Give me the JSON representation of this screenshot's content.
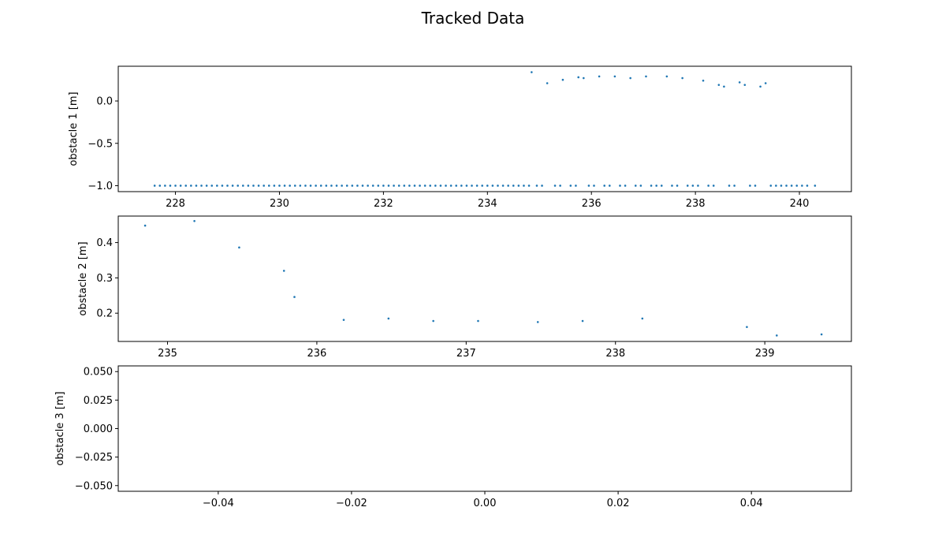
{
  "figure": {
    "title": "Tracked Data"
  },
  "colors": {
    "series": "#1f77b4",
    "axes": "#000000",
    "background": "#ffffff"
  },
  "chart_data": [
    {
      "type": "scatter",
      "ylabel": "obstacle 1 [m]",
      "xlabel": "",
      "xlim": [
        226.9,
        241.0
      ],
      "ylim": [
        -1.07,
        0.41
      ],
      "xticks": [
        228,
        230,
        232,
        234,
        236,
        238,
        240
      ],
      "xtick_labels": [
        "228",
        "230",
        "232",
        "234",
        "236",
        "238",
        "240"
      ],
      "yticks": [
        0.0,
        -0.5,
        -1.0
      ],
      "ytick_labels": [
        "0.0",
        "−0.5",
        "−1.0"
      ],
      "grid": false,
      "series": [
        {
          "points": [
            [
              227.6,
              -1.0
            ],
            [
              227.7,
              -1.0
            ],
            [
              227.8,
              -1.0
            ],
            [
              227.9,
              -1.0
            ],
            [
              228.0,
              -1.0
            ],
            [
              228.1,
              -1.0
            ],
            [
              228.2,
              -1.0
            ],
            [
              228.3,
              -1.0
            ],
            [
              228.4,
              -1.0
            ],
            [
              228.5,
              -1.0
            ],
            [
              228.6,
              -1.0
            ],
            [
              228.7,
              -1.0
            ],
            [
              228.8,
              -1.0
            ],
            [
              228.9,
              -1.0
            ],
            [
              229.0,
              -1.0
            ],
            [
              229.1,
              -1.0
            ],
            [
              229.2,
              -1.0
            ],
            [
              229.3,
              -1.0
            ],
            [
              229.4,
              -1.0
            ],
            [
              229.5,
              -1.0
            ],
            [
              229.6,
              -1.0
            ],
            [
              229.7,
              -1.0
            ],
            [
              229.8,
              -1.0
            ],
            [
              229.9,
              -1.0
            ],
            [
              230.0,
              -1.0
            ],
            [
              230.1,
              -1.0
            ],
            [
              230.2,
              -1.0
            ],
            [
              230.3,
              -1.0
            ],
            [
              230.4,
              -1.0
            ],
            [
              230.5,
              -1.0
            ],
            [
              230.6,
              -1.0
            ],
            [
              230.7,
              -1.0
            ],
            [
              230.8,
              -1.0
            ],
            [
              230.9,
              -1.0
            ],
            [
              231.0,
              -1.0
            ],
            [
              231.1,
              -1.0
            ],
            [
              231.2,
              -1.0
            ],
            [
              231.3,
              -1.0
            ],
            [
              231.4,
              -1.0
            ],
            [
              231.5,
              -1.0
            ],
            [
              231.6,
              -1.0
            ],
            [
              231.7,
              -1.0
            ],
            [
              231.8,
              -1.0
            ],
            [
              231.9,
              -1.0
            ],
            [
              232.0,
              -1.0
            ],
            [
              232.1,
              -1.0
            ],
            [
              232.2,
              -1.0
            ],
            [
              232.3,
              -1.0
            ],
            [
              232.4,
              -1.0
            ],
            [
              232.5,
              -1.0
            ],
            [
              232.6,
              -1.0
            ],
            [
              232.7,
              -1.0
            ],
            [
              232.8,
              -1.0
            ],
            [
              232.9,
              -1.0
            ],
            [
              233.0,
              -1.0
            ],
            [
              233.1,
              -1.0
            ],
            [
              233.2,
              -1.0
            ],
            [
              233.3,
              -1.0
            ],
            [
              233.4,
              -1.0
            ],
            [
              233.5,
              -1.0
            ],
            [
              233.6,
              -1.0
            ],
            [
              233.7,
              -1.0
            ],
            [
              233.8,
              -1.0
            ],
            [
              233.9,
              -1.0
            ],
            [
              234.0,
              -1.0
            ],
            [
              234.1,
              -1.0
            ],
            [
              234.2,
              -1.0
            ],
            [
              234.3,
              -1.0
            ],
            [
              234.4,
              -1.0
            ],
            [
              234.5,
              -1.0
            ],
            [
              234.6,
              -1.0
            ],
            [
              234.7,
              -1.0
            ],
            [
              234.8,
              -1.0
            ],
            [
              234.95,
              -1.0
            ],
            [
              235.05,
              -1.0
            ],
            [
              235.3,
              -1.0
            ],
            [
              235.4,
              -1.0
            ],
            [
              235.6,
              -1.0
            ],
            [
              235.7,
              -1.0
            ],
            [
              235.95,
              -1.0
            ],
            [
              236.05,
              -1.0
            ],
            [
              236.25,
              -1.0
            ],
            [
              236.35,
              -1.0
            ],
            [
              236.55,
              -1.0
            ],
            [
              236.65,
              -1.0
            ],
            [
              236.85,
              -1.0
            ],
            [
              236.95,
              -1.0
            ],
            [
              237.15,
              -1.0
            ],
            [
              237.25,
              -1.0
            ],
            [
              237.35,
              -1.0
            ],
            [
              237.55,
              -1.0
            ],
            [
              237.65,
              -1.0
            ],
            [
              237.85,
              -1.0
            ],
            [
              237.95,
              -1.0
            ],
            [
              238.05,
              -1.0
            ],
            [
              238.25,
              -1.0
            ],
            [
              238.35,
              -1.0
            ],
            [
              238.65,
              -1.0
            ],
            [
              238.75,
              -1.0
            ],
            [
              239.05,
              -1.0
            ],
            [
              239.15,
              -1.0
            ],
            [
              239.45,
              -1.0
            ],
            [
              239.55,
              -1.0
            ],
            [
              239.65,
              -1.0
            ],
            [
              239.75,
              -1.0
            ],
            [
              239.85,
              -1.0
            ],
            [
              239.95,
              -1.0
            ],
            [
              240.05,
              -1.0
            ],
            [
              240.15,
              -1.0
            ],
            [
              240.3,
              -1.0
            ],
            [
              234.85,
              0.34
            ],
            [
              235.15,
              0.21
            ],
            [
              235.45,
              0.25
            ],
            [
              235.75,
              0.28
            ],
            [
              235.85,
              0.27
            ],
            [
              236.15,
              0.29
            ],
            [
              236.45,
              0.29
            ],
            [
              236.75,
              0.27
            ],
            [
              237.05,
              0.29
            ],
            [
              237.45,
              0.29
            ],
            [
              237.75,
              0.27
            ],
            [
              238.15,
              0.24
            ],
            [
              238.45,
              0.19
            ],
            [
              238.55,
              0.17
            ],
            [
              238.85,
              0.22
            ],
            [
              238.95,
              0.19
            ],
            [
              239.25,
              0.17
            ],
            [
              239.35,
              0.21
            ]
          ]
        }
      ]
    },
    {
      "type": "scatter",
      "ylabel": "obstacle 2 [m]",
      "xlabel": "",
      "xlim": [
        234.67,
        239.58
      ],
      "ylim": [
        0.12,
        0.475
      ],
      "xticks": [
        235,
        236,
        237,
        238,
        239
      ],
      "xtick_labels": [
        "235",
        "236",
        "237",
        "238",
        "239"
      ],
      "yticks": [
        0.2,
        0.3,
        0.4
      ],
      "ytick_labels": [
        "0.2",
        "0.3",
        "0.4"
      ],
      "grid": false,
      "series": [
        {
          "points": [
            [
              234.85,
              0.448
            ],
            [
              235.18,
              0.461
            ],
            [
              235.48,
              0.386
            ],
            [
              235.78,
              0.32
            ],
            [
              235.85,
              0.246
            ],
            [
              236.18,
              0.181
            ],
            [
              236.48,
              0.185
            ],
            [
              236.78,
              0.178
            ],
            [
              237.08,
              0.178
            ],
            [
              237.48,
              0.175
            ],
            [
              237.78,
              0.178
            ],
            [
              238.18,
              0.185
            ],
            [
              238.88,
              0.161
            ],
            [
              239.08,
              0.137
            ],
            [
              239.38,
              0.14
            ]
          ]
        }
      ]
    },
    {
      "type": "scatter",
      "ylabel": "obstacle 3 [m]",
      "xlabel": "",
      "xlim": [
        -0.055,
        0.055
      ],
      "ylim": [
        -0.055,
        0.055
      ],
      "xticks": [
        -0.04,
        -0.02,
        0.0,
        0.02,
        0.04
      ],
      "xtick_labels": [
        "−0.04",
        "−0.02",
        "0.00",
        "0.02",
        "0.04"
      ],
      "yticks": [
        0.05,
        0.025,
        0.0,
        -0.025,
        -0.05
      ],
      "ytick_labels": [
        "0.050",
        "0.025",
        "0.000",
        "−0.025",
        "−0.050"
      ],
      "grid": false,
      "series": [
        {
          "points": []
        }
      ]
    }
  ]
}
